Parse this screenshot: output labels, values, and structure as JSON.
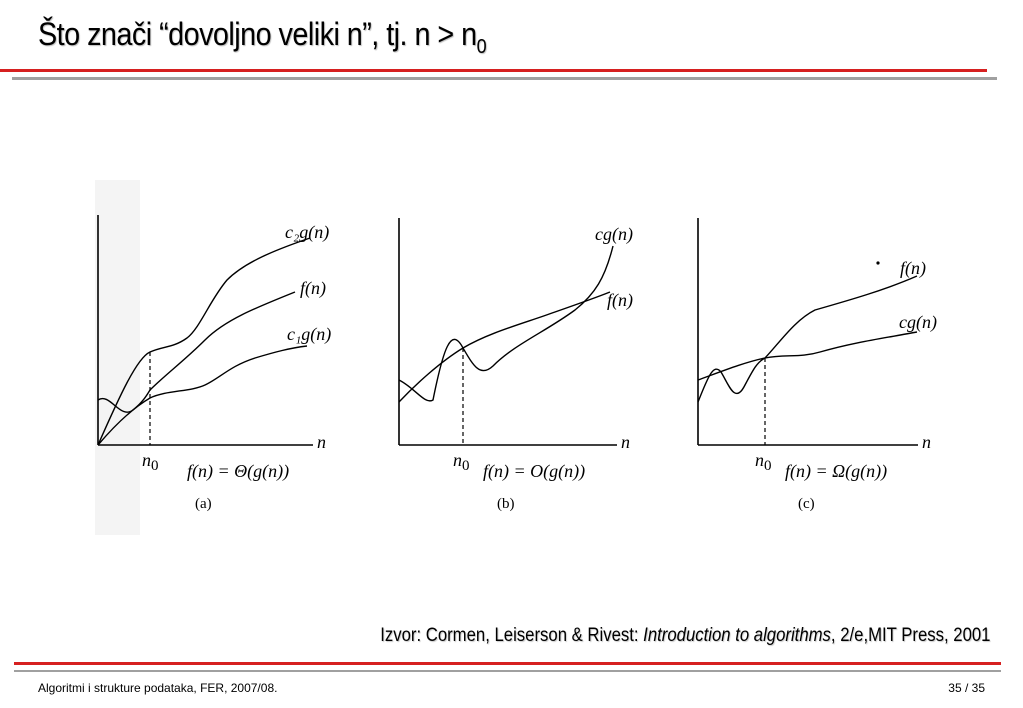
{
  "slide": {
    "title_main": "Što znači “dovoljno veliki n”, tj. n > n",
    "title_sub": "0"
  },
  "figure": {
    "panels": [
      {
        "id": "a",
        "caption": "(a)",
        "formula": "f(n) = Θ(g(n))",
        "x_axis": "n",
        "n0_label": "n",
        "curves": [
          "c₂g(n)",
          "f(n)",
          "c₁g(n)"
        ]
      },
      {
        "id": "b",
        "caption": "(b)",
        "formula": "f(n) = O(g(n))",
        "x_axis": "n",
        "n0_label": "n",
        "curves": [
          "cg(n)",
          "f(n)"
        ]
      },
      {
        "id": "c",
        "caption": "(c)",
        "formula": "f(n) = Ω(g(n))",
        "x_axis": "n",
        "n0_label": "n",
        "curves": [
          "f(n)",
          "cg(n)"
        ]
      }
    ],
    "n0_sub": "0"
  },
  "source": {
    "prefix": "Izvor: Cormen, Leiserson & Rivest: ",
    "book": "Introduction to algorithms",
    "suffix": ", 2/e,MIT Press, 2001"
  },
  "footer": {
    "left": "Algoritmi i strukture podataka, FER, 2007/08.",
    "right": "35 / 35"
  },
  "colors": {
    "accent_red": "#d62020",
    "rule_gray": "#a0a0a0"
  }
}
